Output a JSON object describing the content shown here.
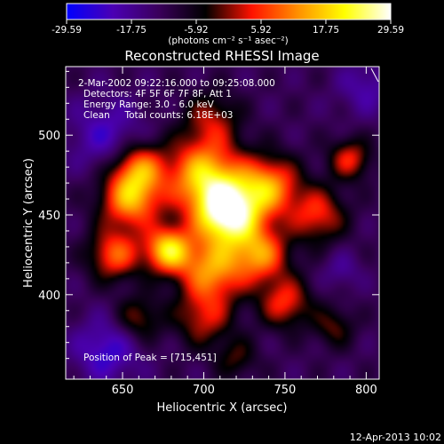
{
  "date_stamp": "12-Apr-2013 10:02",
  "colorbar": {
    "ticks": [
      "-29.59",
      "-17.75",
      "-5.92",
      "5.92",
      "17.75",
      "29.59"
    ],
    "range": [
      -29.59,
      29.59
    ],
    "units_label": "(photons cm⁻² s⁻¹ asec⁻²)",
    "colors": [
      "#0000ff",
      "#4b00b4",
      "#3a005a",
      "#000000",
      "#ff1200",
      "#ff9000",
      "#ffff00",
      "#ffffff"
    ]
  },
  "chart_data": {
    "type": "heatmap",
    "title": "Reconstructed RHESSI Image",
    "xlabel": "Heliocentric X (arcsec)",
    "ylabel": "Heliocentric Y (arcsec)",
    "xlim": [
      615,
      808
    ],
    "ylim": [
      347,
      543
    ],
    "x_ticks": [
      650,
      700,
      750,
      800
    ],
    "y_ticks": [
      400,
      450,
      500
    ],
    "annotations": [
      "2-Mar-2002 09:22:16.000 to 09:25:08.000",
      "Detectors: 4F 5F 6F 7F 8F, Att 1",
      "Energy Range: 3.0 - 6.0 keV",
      "Clean     Total counts: 6.18E+03"
    ],
    "peak_label": "Position of Peak = [715,451]",
    "peak": {
      "x": 715,
      "y": 451,
      "value": 29.59
    },
    "background_level": -12,
    "sources": [
      {
        "x": 715,
        "y": 451,
        "amp": 41,
        "sigma": 14
      },
      {
        "x": 678,
        "y": 428,
        "amp": 30,
        "sigma": 10
      },
      {
        "x": 700,
        "y": 475,
        "amp": 28,
        "sigma": 16
      },
      {
        "x": 740,
        "y": 468,
        "amp": 24,
        "sigma": 13
      },
      {
        "x": 655,
        "y": 460,
        "amp": 26,
        "sigma": 13
      },
      {
        "x": 660,
        "y": 480,
        "amp": 20,
        "sigma": 11
      },
      {
        "x": 645,
        "y": 425,
        "amp": 20,
        "sigma": 11
      },
      {
        "x": 705,
        "y": 415,
        "amp": 24,
        "sigma": 14
      },
      {
        "x": 735,
        "y": 425,
        "amp": 22,
        "sigma": 12
      },
      {
        "x": 750,
        "y": 395,
        "amp": 17,
        "sigma": 11
      },
      {
        "x": 700,
        "y": 385,
        "amp": 14,
        "sigma": 12
      },
      {
        "x": 660,
        "y": 385,
        "amp": 12,
        "sigma": 10
      },
      {
        "x": 770,
        "y": 450,
        "amp": 17,
        "sigma": 12
      },
      {
        "x": 790,
        "y": 485,
        "amp": 16,
        "sigma": 9
      },
      {
        "x": 780,
        "y": 380,
        "amp": 10,
        "sigma": 9
      },
      {
        "x": 705,
        "y": 510,
        "amp": 12,
        "sigma": 12
      },
      {
        "x": 720,
        "y": 360,
        "amp": 9,
        "sigma": 9
      },
      {
        "x": 640,
        "y": 500,
        "amp": -10,
        "sigma": 16
      },
      {
        "x": 640,
        "y": 365,
        "amp": -12,
        "sigma": 14
      },
      {
        "x": 800,
        "y": 530,
        "amp": -8,
        "sigma": 12
      },
      {
        "x": 785,
        "y": 415,
        "amp": -6,
        "sigma": 8
      }
    ]
  }
}
